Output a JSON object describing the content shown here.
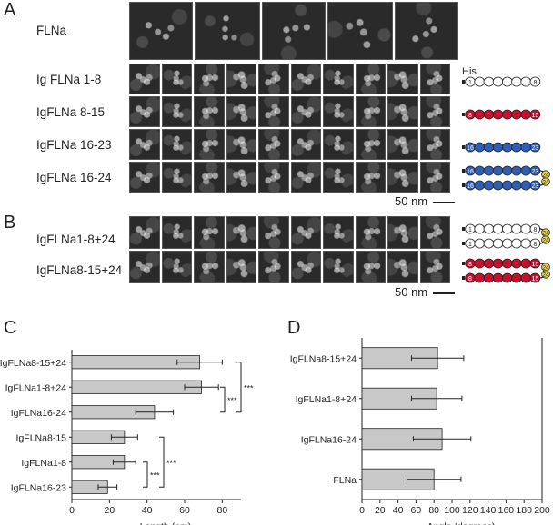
{
  "panel_a": {
    "letter": "A",
    "rows": [
      "FLNa",
      "Ig FLNa 1-8",
      "IgFLNa 8-15",
      "IgFLNa 16-23",
      "IgFLNa 16-24"
    ],
    "scalebar": "50 nm",
    "his_label": "His",
    "schematics": [
      {
        "first": "1",
        "last": "8"
      },
      {
        "first": "8",
        "last": "15"
      },
      {
        "first": "16",
        "last": "23"
      },
      {
        "first": "16",
        "last": "23",
        "tail": "24"
      }
    ]
  },
  "panel_b": {
    "letter": "B",
    "rows": [
      "IgFLNa1-8+24",
      "IgFLNa8-15+24"
    ],
    "scalebar": "50 nm",
    "schematics": [
      {
        "first": "1",
        "last": "8",
        "tail": "24"
      },
      {
        "first": "8",
        "last": "15",
        "tail": "24"
      }
    ]
  },
  "panel_c": {
    "letter": "C",
    "significance": "***"
  },
  "panel_d": {
    "letter": "D"
  },
  "colors": {
    "bar_fill": "#c8c8c8",
    "fln_1_8": "#ffffff",
    "fln_8_15": "#c8102e",
    "fln_16_23": "#2f5fb3",
    "fln_24": "#e8d43a",
    "em_background": "#2a2a2a"
  },
  "chart_data": [
    {
      "type": "bar",
      "orientation": "horizontal",
      "categories": [
        "IgFLNa8-15+24",
        "IgFLNa1-8+24",
        "IgFLNa16-24",
        "IgFLNa8-15",
        "IgFLNa1-8",
        "IgFLNa16-23"
      ],
      "values": [
        68,
        69,
        44,
        28,
        28,
        19
      ],
      "errors": [
        12,
        9,
        10,
        7,
        6,
        5
      ],
      "xlabel": "Length (nm)",
      "ylabel": "",
      "xlim": [
        0,
        90
      ],
      "xticks": [
        0,
        20,
        40,
        60,
        80
      ]
    },
    {
      "type": "bar",
      "orientation": "horizontal",
      "categories": [
        "IgFLNa8-15+24",
        "IgFLNa1-8+24",
        "IgFLNa16-24",
        "FLNa"
      ],
      "values": [
        84,
        83,
        89,
        80
      ],
      "errors": [
        29,
        28,
        32,
        30
      ],
      "xlabel": "Angle (degrees)",
      "ylabel": "",
      "xlim": [
        0,
        200
      ],
      "xticks": [
        0,
        20,
        40,
        60,
        80,
        100,
        120,
        140,
        160,
        180,
        200
      ]
    }
  ]
}
